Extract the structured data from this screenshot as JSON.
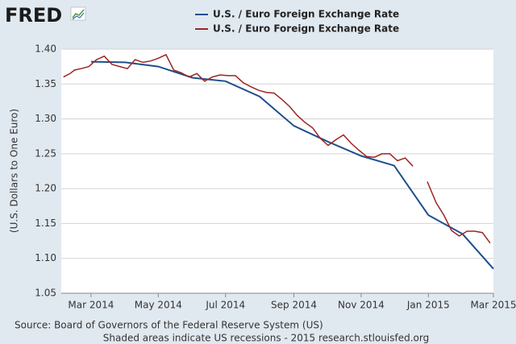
{
  "logo": "FRED",
  "chart_data": {
    "type": "line",
    "ylabel": "(U.S. Dollars to One Euro)",
    "source": "Source: Board of Governors of the Federal Reserve System (US)",
    "note": "Shaded areas indicate US recessions - 2015 research.stlouisfed.org",
    "xlim": [
      "2014-02-02",
      "2015-03-01"
    ],
    "xticks": [
      {
        "value": "2014-03",
        "label": "Mar 2014"
      },
      {
        "value": "2014-05",
        "label": "May 2014"
      },
      {
        "value": "2014-07",
        "label": "Jul 2014"
      },
      {
        "value": "2014-09",
        "label": "Sep 2014"
      },
      {
        "value": "2014-11",
        "label": "Nov 2014"
      },
      {
        "value": "2015-01",
        "label": "Jan 2015"
      },
      {
        "value": "2015-03",
        "label": "Mar 2015"
      }
    ],
    "ylim": [
      1.05,
      1.4
    ],
    "yticks": [
      {
        "value": 1.05,
        "label": "1.05"
      },
      {
        "value": 1.1,
        "label": "1.10"
      },
      {
        "value": 1.15,
        "label": "1.15"
      },
      {
        "value": 1.2,
        "label": "1.20"
      },
      {
        "value": 1.25,
        "label": "1.25"
      },
      {
        "value": 1.3,
        "label": "1.30"
      },
      {
        "value": 1.35,
        "label": "1.35"
      },
      {
        "value": 1.4,
        "label": "1.40"
      }
    ],
    "grid": true,
    "series": [
      {
        "name": "U.S. / Euro Foreign Exchange Rate",
        "color": "#1f4e8c",
        "x": [
          "2014-03",
          "2014-04",
          "2014-05",
          "2014-06",
          "2014-07",
          "2014-08",
          "2014-09",
          "2014-10",
          "2014-11",
          "2014-12",
          "2015-01",
          "2015-02",
          "2015-03"
        ],
        "values": [
          1.382,
          1.381,
          1.375,
          1.359,
          1.354,
          1.332,
          1.29,
          1.268,
          1.247,
          1.233,
          1.162,
          1.135,
          1.085
        ]
      },
      {
        "name": "U.S. / Euro Foreign Exchange Rate",
        "color": "#9b2524",
        "x": [
          "2014-02-04",
          "2014-02-10",
          "2014-02-14",
          "2014-02-20",
          "2014-02-27",
          "2014-03-06",
          "2014-03-13",
          "2014-03-20",
          "2014-03-27",
          "2014-04-03",
          "2014-04-10",
          "2014-04-17",
          "2014-04-24",
          "2014-05-01",
          "2014-05-08",
          "2014-05-15",
          "2014-05-22",
          "2014-05-29",
          "2014-06-05",
          "2014-06-12",
          "2014-06-19",
          "2014-06-26",
          "2014-07-03",
          "2014-07-10",
          "2014-07-17",
          "2014-07-24",
          "2014-07-31",
          "2014-08-07",
          "2014-08-14",
          "2014-08-21",
          "2014-08-28",
          "2014-09-04",
          "2014-09-11",
          "2014-09-18",
          "2014-09-25",
          "2014-10-02",
          "2014-10-09",
          "2014-10-16",
          "2014-10-23",
          "2014-10-30",
          "2014-11-06",
          "2014-11-13",
          "2014-11-20",
          "2014-11-27",
          "2014-12-04",
          "2014-12-11",
          "2014-12-18",
          "2014-12-25",
          "2014-12-31",
          "2015-01-08",
          "2015-01-15",
          "2015-01-22",
          "2015-01-29",
          "2015-02-05",
          "2015-02-12",
          "2015-02-19",
          "2015-02-26"
        ],
        "values": [
          1.36,
          1.365,
          1.37,
          1.372,
          1.375,
          1.385,
          1.39,
          1.378,
          1.375,
          1.372,
          1.385,
          1.381,
          1.383,
          1.387,
          1.392,
          1.37,
          1.366,
          1.36,
          1.365,
          1.354,
          1.36,
          1.363,
          1.362,
          1.362,
          1.352,
          1.346,
          1.341,
          1.338,
          1.337,
          1.328,
          1.318,
          1.305,
          1.295,
          1.287,
          1.272,
          1.262,
          1.27,
          1.277,
          1.265,
          1.255,
          1.246,
          1.245,
          1.25,
          1.25,
          1.24,
          1.244,
          1.232,
          null,
          1.21,
          1.18,
          1.162,
          1.14,
          1.132,
          1.139,
          1.139,
          1.137,
          1.122
        ]
      }
    ]
  }
}
